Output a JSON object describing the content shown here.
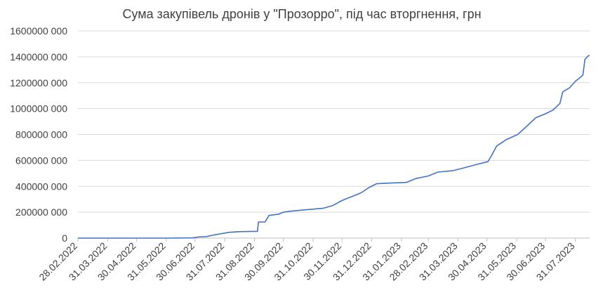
{
  "chart_data": {
    "type": "line",
    "title": "Сума закупівель дронів у \"Прозорро\", під час вторгнення, грн",
    "xlabel": "",
    "ylabel": "",
    "ylim": [
      0,
      1600000000
    ],
    "y_ticks": [
      "0",
      "200000 000",
      "400000 000",
      "600000 000",
      "800000 000",
      "1000000 000",
      "1200000 000",
      "1400000 000",
      "1600000 000"
    ],
    "x_range": [
      "2022-02-28",
      "2023-08-15"
    ],
    "x_ticks": [
      {
        "date": "2022-02-28",
        "label": "28.02.2022"
      },
      {
        "date": "2022-03-31",
        "label": "31.03.2022"
      },
      {
        "date": "2022-04-30",
        "label": "30.04.2022"
      },
      {
        "date": "2022-05-31",
        "label": "31.05.2022"
      },
      {
        "date": "2022-06-30",
        "label": "30.06.2022"
      },
      {
        "date": "2022-07-31",
        "label": "31.07.2022"
      },
      {
        "date": "2022-08-31",
        "label": "31.08.2022"
      },
      {
        "date": "2022-09-30",
        "label": "30.09.2022"
      },
      {
        "date": "2022-10-31",
        "label": "31.10.2022"
      },
      {
        "date": "2022-11-30",
        "label": "30.11.2022"
      },
      {
        "date": "2022-12-31",
        "label": "31.12.2022"
      },
      {
        "date": "2023-01-31",
        "label": "31.01.2023"
      },
      {
        "date": "2023-02-28",
        "label": "28.02.2023"
      },
      {
        "date": "2023-03-31",
        "label": "31.03.2023"
      },
      {
        "date": "2023-04-30",
        "label": "30.04.2023"
      },
      {
        "date": "2023-05-31",
        "label": "31.05.2023"
      },
      {
        "date": "2023-06-30",
        "label": "30.06.2023"
      },
      {
        "date": "2023-07-31",
        "label": "31.07.2023"
      }
    ],
    "grid": true,
    "color": "#4472c4",
    "series": [
      {
        "name": "",
        "points": [
          [
            "2022-02-28",
            0
          ],
          [
            "2022-06-05",
            0
          ],
          [
            "2022-06-28",
            2000000
          ],
          [
            "2022-07-03",
            8000000
          ],
          [
            "2022-07-12",
            12000000
          ],
          [
            "2022-07-20",
            25000000
          ],
          [
            "2022-07-28",
            35000000
          ],
          [
            "2022-08-05",
            45000000
          ],
          [
            "2022-08-15",
            50000000
          ],
          [
            "2022-08-28",
            52000000
          ],
          [
            "2022-09-03",
            52000000
          ],
          [
            "2022-09-04",
            125000000
          ],
          [
            "2022-09-11",
            125000000
          ],
          [
            "2022-09-13",
            150000000
          ],
          [
            "2022-09-15",
            175000000
          ],
          [
            "2022-09-25",
            185000000
          ],
          [
            "2022-09-30",
            200000000
          ],
          [
            "2022-10-10",
            210000000
          ],
          [
            "2022-10-25",
            220000000
          ],
          [
            "2022-11-10",
            230000000
          ],
          [
            "2022-11-20",
            250000000
          ],
          [
            "2022-11-30",
            290000000
          ],
          [
            "2022-12-10",
            320000000
          ],
          [
            "2022-12-20",
            350000000
          ],
          [
            "2022-12-28",
            390000000
          ],
          [
            "2023-01-05",
            420000000
          ],
          [
            "2023-01-20",
            425000000
          ],
          [
            "2023-02-05",
            430000000
          ],
          [
            "2023-02-15",
            460000000
          ],
          [
            "2023-02-28",
            480000000
          ],
          [
            "2023-03-10",
            510000000
          ],
          [
            "2023-03-25",
            520000000
          ],
          [
            "2023-04-05",
            540000000
          ],
          [
            "2023-04-20",
            570000000
          ],
          [
            "2023-05-01",
            590000000
          ],
          [
            "2023-05-05",
            640000000
          ],
          [
            "2023-05-10",
            710000000
          ],
          [
            "2023-05-20",
            760000000
          ],
          [
            "2023-06-01",
            800000000
          ],
          [
            "2023-06-10",
            860000000
          ],
          [
            "2023-06-20",
            930000000
          ],
          [
            "2023-06-30",
            960000000
          ],
          [
            "2023-07-08",
            990000000
          ],
          [
            "2023-07-15",
            1040000000
          ],
          [
            "2023-07-18",
            1130000000
          ],
          [
            "2023-07-25",
            1160000000
          ],
          [
            "2023-07-31",
            1210000000
          ],
          [
            "2023-08-05",
            1240000000
          ],
          [
            "2023-08-08",
            1260000000
          ],
          [
            "2023-08-10",
            1380000000
          ],
          [
            "2023-08-14",
            1410000000
          ],
          [
            "2023-08-15",
            1410000000
          ]
        ]
      }
    ]
  }
}
